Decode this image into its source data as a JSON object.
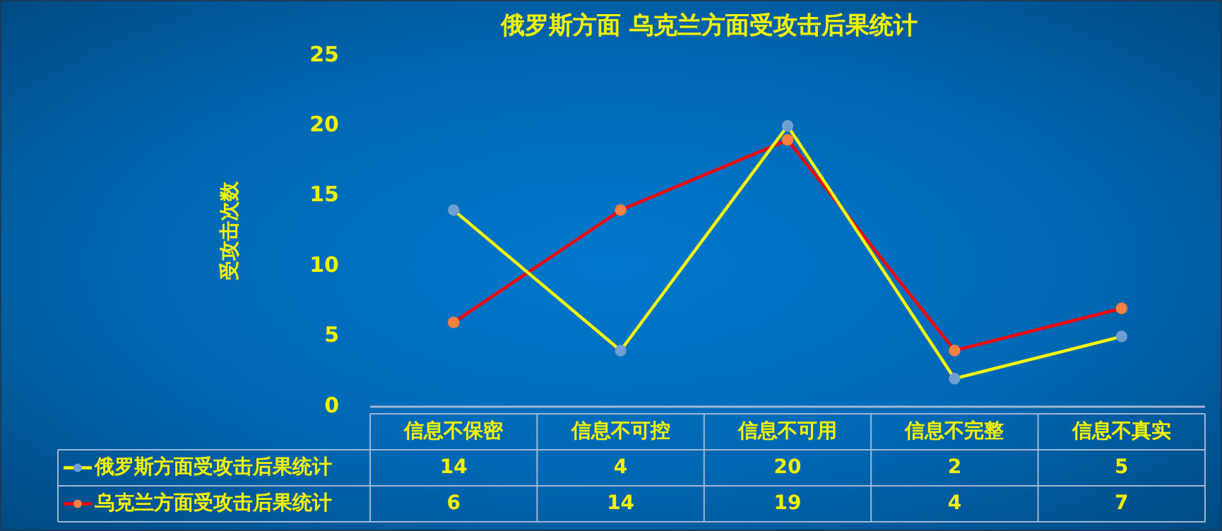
{
  "chart_data": {
    "type": "line",
    "title": "俄罗斯方面 乌克兰方面受攻击后果统计",
    "ylabel": "受攻击次数",
    "categories": [
      "信息不保密",
      "信息不可控",
      "信息不可用",
      "信息不完整",
      "信息不真实"
    ],
    "series": [
      {
        "name": "俄罗斯方面受攻击后果统计",
        "color": "#ffff00",
        "values": [
          14,
          4,
          20,
          2,
          5
        ]
      },
      {
        "name": "乌克兰方面受攻击后果统计",
        "color": "#ff0000",
        "values": [
          6,
          14,
          19,
          4,
          7
        ]
      }
    ],
    "ylim": [
      0,
      25
    ],
    "yticks": [
      0,
      5,
      10,
      15,
      20,
      25
    ],
    "grid": false,
    "legend": "bottom",
    "marker": "circle",
    "line_style": "solid",
    "data_labels": true
  }
}
